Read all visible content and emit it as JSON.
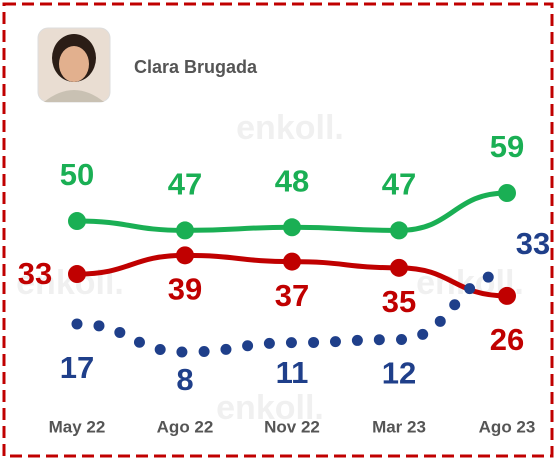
{
  "chart_data": {
    "type": "line",
    "title": "Clara Brugada",
    "watermark": "enkoll.",
    "categories": [
      "May 22",
      "Ago 22",
      "Nov 22",
      "Mar 23",
      "Ago 23"
    ],
    "series": [
      {
        "color": "#1aaf54",
        "style": "solid",
        "values": [
          50,
          47,
          48,
          47,
          59
        ]
      },
      {
        "color": "#c00000",
        "style": "solid",
        "values": [
          33,
          39,
          37,
          35,
          26
        ]
      },
      {
        "color": "#1f3f8a",
        "style": "dotted",
        "values": [
          17,
          8,
          11,
          12,
          33
        ]
      }
    ]
  }
}
